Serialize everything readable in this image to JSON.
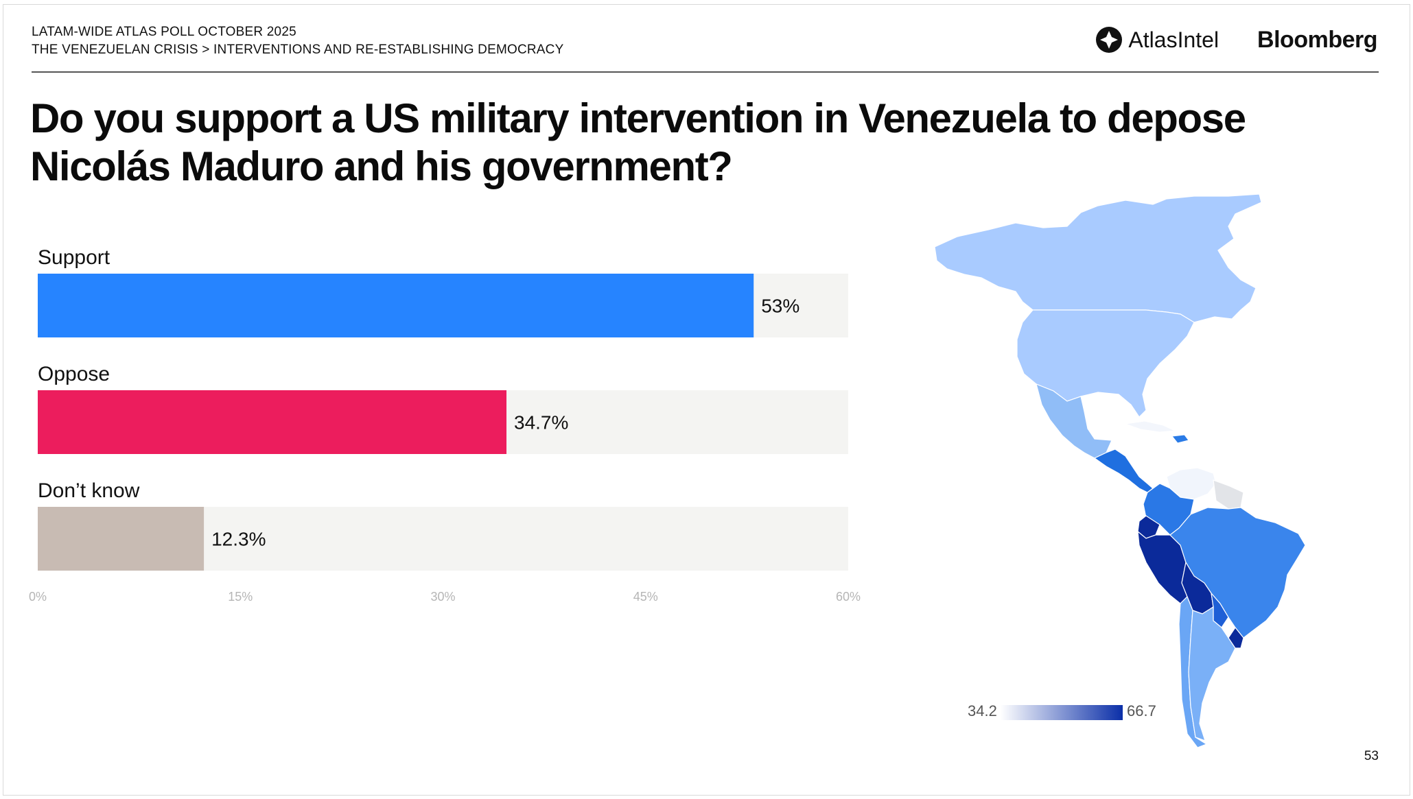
{
  "header": {
    "eyebrow_line1": "LATAM-WIDE ATLAS POLL OCTOBER 2025",
    "eyebrow_line2": "THE VENEZUELAN CRISIS > INTERVENTIONS AND RE-ESTABLISHING DEMOCRACY",
    "atlas_logo_text": "AtlasIntel",
    "bloomberg_logo_text": "Bloomberg"
  },
  "title_line1": "Do you support a US military intervention in Venezuela to depose",
  "title_line2": "Nicolás Maduro and his government?",
  "chart_data": {
    "type": "bar",
    "orientation": "horizontal",
    "categories": [
      "Support",
      "Oppose",
      "Don’t know"
    ],
    "values": [
      53,
      34.7,
      12.3
    ],
    "value_labels": [
      "53%",
      "34.7%",
      "12.3%"
    ],
    "colors": [
      "#2684ff",
      "#ec1d5d",
      "#c8bbb3"
    ],
    "track_color": "#f4f4f2",
    "xlim": [
      0,
      60
    ],
    "ticks": [
      0,
      15,
      30,
      45,
      60
    ],
    "tick_labels": [
      "0%",
      "15%",
      "30%",
      "45%",
      "60%"
    ]
  },
  "map_legend": {
    "min_label": "34.2",
    "max_label": "66.7",
    "gradient_start": "#ffffff",
    "gradient_end": "#0b2fa8"
  },
  "page_number": "53"
}
